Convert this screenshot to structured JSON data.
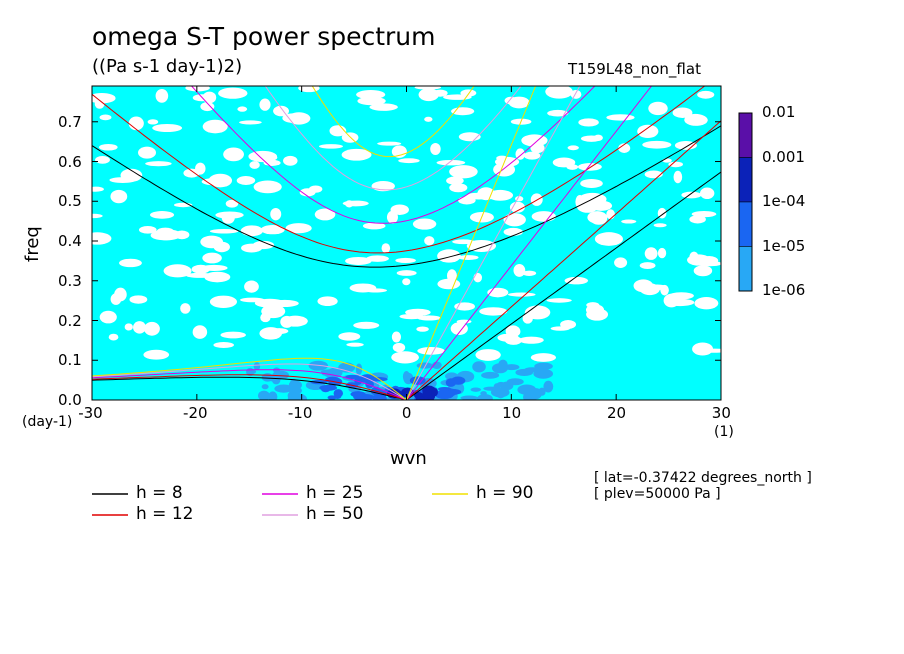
{
  "chart_data": {
    "type": "heatmap",
    "title": "omega S-T power spectrum",
    "subtitle": "((Pa s-1 day-1)2)",
    "run_label": "T159L48_non_flat",
    "xlabel": "wvn",
    "ylabel": "freq",
    "x_unit": "(1)",
    "y_unit": "(day-1)",
    "xlim": [
      -30,
      30
    ],
    "ylim": [
      0,
      0.79
    ],
    "x_ticks": [
      -30,
      -20,
      -10,
      0,
      10,
      20,
      30
    ],
    "x_tick_labels": [
      "-30",
      "-20",
      "-10",
      "0",
      "10",
      "20",
      "30"
    ],
    "y_ticks": [
      0,
      0.1,
      0.2,
      0.3,
      0.4,
      0.5,
      0.6,
      0.7
    ],
    "y_tick_labels": [
      "0.0",
      "0.1",
      "0.2",
      "0.3",
      "0.4",
      "0.5",
      "0.6",
      "0.7"
    ],
    "colorbar": {
      "scale": "log",
      "labels": [
        "0.01",
        "0.001",
        "1e-04",
        "1e-05",
        "1e-06"
      ],
      "colors": [
        "#5a0fa8",
        "#0b22b8",
        "#1a66f2",
        "#28a8f5",
        "#00ffff"
      ]
    },
    "legend": [
      {
        "label": "h =  8",
        "color": "#000000"
      },
      {
        "label": "h = 12",
        "color": "#e00000"
      },
      {
        "label": "h = 25",
        "color": "#e000e0"
      },
      {
        "label": "h = 50",
        "color": "#e0a0e0"
      },
      {
        "label": "h = 90",
        "color": "#f0e000"
      }
    ],
    "dispersion_curves": {
      "equivalent_depths_m": [
        8,
        12,
        25,
        50,
        90
      ],
      "families": [
        "kelvin",
        "n=1 inertia-gravity",
        "n=1 equatorial rossby"
      ]
    }
  },
  "metadata_text": {
    "lat": "[ lat=-0.37422 degrees_north ]",
    "plev": "[ plev=50000 Pa ]"
  }
}
